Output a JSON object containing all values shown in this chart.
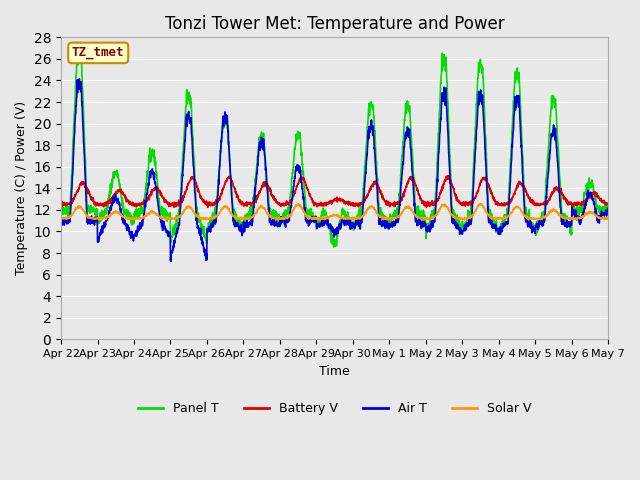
{
  "title": "Tonzi Tower Met: Temperature and Power",
  "xlabel": "Time",
  "ylabel": "Temperature (C) / Power (V)",
  "ylim": [
    0,
    28
  ],
  "bg_color": "#e8e8e8",
  "label_box_text": "TZ_tmet",
  "label_box_facecolor": "#ffffcc",
  "label_box_edgecolor": "#cc8800",
  "label_box_textcolor": "#880000",
  "xtick_labels": [
    "Apr 22",
    "Apr 23",
    "Apr 24",
    "Apr 25",
    "Apr 26",
    "Apr 27",
    "Apr 28",
    "Apr 29",
    "Apr 30",
    "May 1",
    "May 2",
    "May 3",
    "May 4",
    "May 5",
    "May 6",
    "May 7"
  ],
  "legend_labels": [
    "Panel T",
    "Battery V",
    "Air T",
    "Solar V"
  ],
  "color_panel": "#00dd00",
  "color_battery": "#dd0000",
  "color_air": "#0000dd",
  "color_solar": "#ff9900",
  "line_width": 1.2,
  "title_fontsize": 12,
  "axis_fontsize": 9,
  "tick_fontsize": 8,
  "yticks": [
    0,
    2,
    4,
    6,
    8,
    10,
    12,
    14,
    16,
    18,
    20,
    22,
    24,
    26,
    28
  ]
}
